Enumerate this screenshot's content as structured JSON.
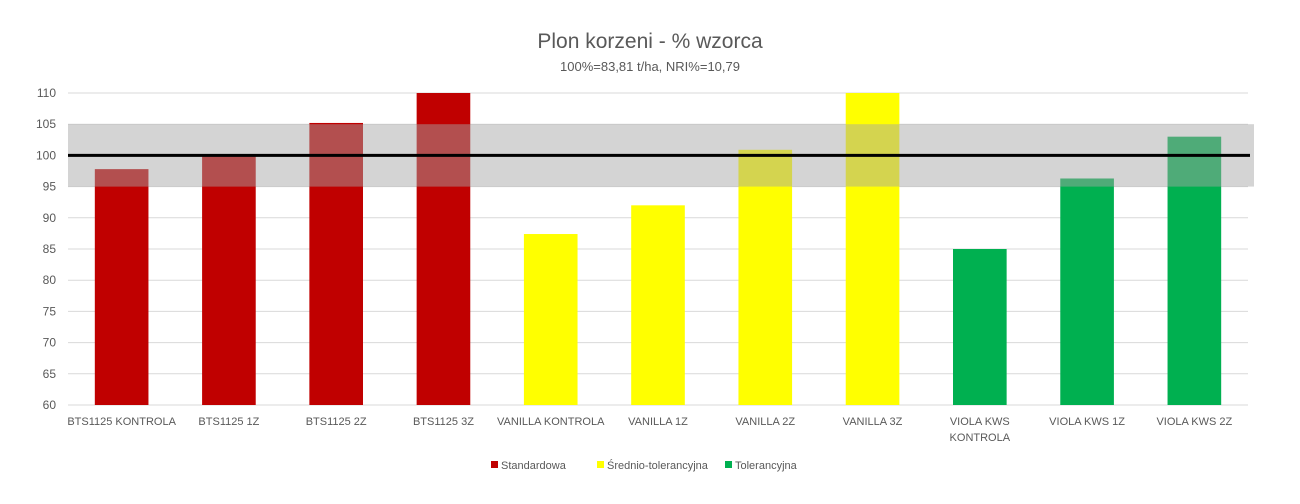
{
  "chart_data": {
    "type": "bar",
    "title": "Plon korzeni - % wzorca",
    "subtitle": "100%=83,81 t/ha, NRI%=10,79",
    "xlabel": "",
    "ylabel": "",
    "ylim": [
      60,
      110
    ],
    "yticks": [
      "60",
      "65",
      "70",
      "75",
      "80",
      "85",
      "90",
      "95",
      "100",
      "105",
      "110"
    ],
    "grid": true,
    "reference_line": 100,
    "reference_band": [
      95,
      105
    ],
    "legend_position": "bottom",
    "categories": [
      [
        "BTS1125 KONTROLA"
      ],
      [
        "BTS1125 1Z"
      ],
      [
        "BTS1125 2Z"
      ],
      [
        "BTS1125 3Z"
      ],
      [
        "VANILLA KONTROLA"
      ],
      [
        "VANILLA 1Z"
      ],
      [
        "VANILLA 2Z"
      ],
      [
        "VANILLA 3Z"
      ],
      [
        "VIOLA KWS",
        "KONTROLA"
      ],
      [
        "VIOLA KWS 1Z"
      ],
      [
        "VIOLA KWS 2Z"
      ]
    ],
    "series": [
      {
        "name": "Standardowa",
        "color": "#c00000",
        "values": [
          97.8,
          100.0,
          105.2,
          110,
          null,
          null,
          null,
          null,
          null,
          null,
          null
        ]
      },
      {
        "name": "Średnio-tolerancyjna",
        "color": "#ffff00",
        "values": [
          null,
          null,
          null,
          null,
          87.4,
          92.0,
          100.9,
          110,
          null,
          null,
          null
        ]
      },
      {
        "name": "Tolerancyjna",
        "color": "#00b050",
        "values": [
          null,
          null,
          null,
          null,
          null,
          null,
          null,
          null,
          85.0,
          96.3,
          103.0
        ]
      }
    ]
  }
}
